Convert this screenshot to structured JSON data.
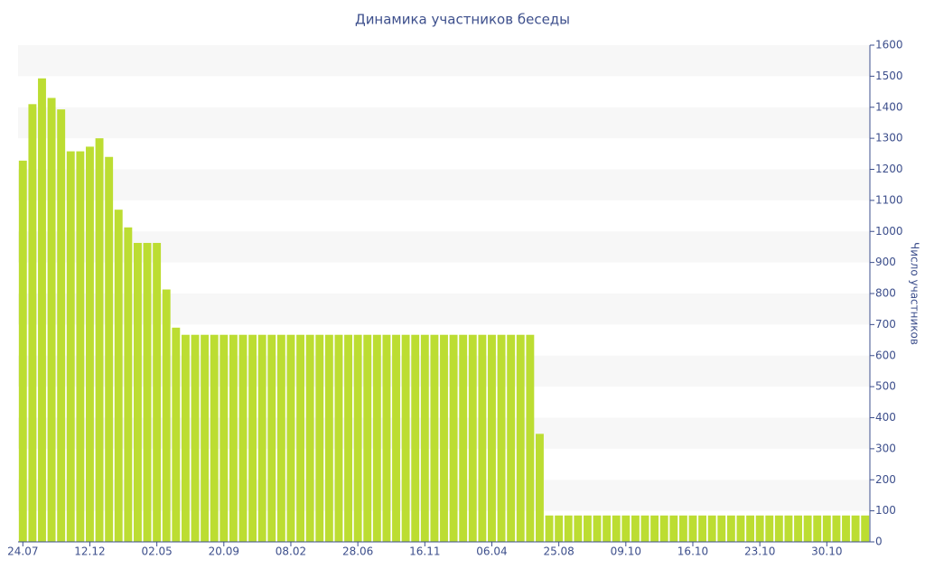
{
  "chart_data": {
    "type": "bar",
    "title": "Динамика участников беседы",
    "y_label": "Число участников",
    "categories": [
      "24.07",
      null,
      null,
      null,
      null,
      null,
      null,
      "12.12",
      null,
      null,
      null,
      null,
      null,
      null,
      "02.05",
      null,
      null,
      null,
      null,
      null,
      null,
      "20.09",
      null,
      null,
      null,
      null,
      null,
      null,
      "08.02",
      null,
      null,
      null,
      null,
      null,
      null,
      "28.06",
      null,
      null,
      null,
      null,
      null,
      null,
      "16.11",
      null,
      null,
      null,
      null,
      null,
      null,
      "06.04",
      null,
      null,
      null,
      null,
      null,
      null,
      "25.08",
      null,
      null,
      null,
      null,
      null,
      null,
      "09.10",
      null,
      null,
      null,
      null,
      null,
      null,
      "16.10",
      null,
      null,
      null,
      null,
      null,
      null,
      "23.10",
      null,
      null,
      null,
      null,
      null,
      null,
      "30.10",
      null,
      null,
      null,
      null
    ],
    "values": [
      1228,
      1410,
      1493,
      1430,
      1393,
      1258,
      1258,
      1273,
      1300,
      1240,
      1070,
      1013,
      963,
      963,
      963,
      813,
      690,
      667,
      667,
      667,
      667,
      667,
      667,
      667,
      667,
      667,
      667,
      667,
      667,
      667,
      667,
      667,
      667,
      667,
      667,
      667,
      667,
      667,
      667,
      667,
      667,
      667,
      667,
      667,
      667,
      667,
      667,
      667,
      667,
      667,
      667,
      667,
      667,
      667,
      348,
      85,
      85,
      85,
      85,
      85,
      85,
      85,
      85,
      85,
      85,
      85,
      85,
      85,
      85,
      85,
      85,
      85,
      85,
      85,
      85,
      85,
      85,
      85,
      85,
      85,
      85,
      85,
      85,
      85,
      85,
      85,
      85,
      85,
      85
    ],
    "color": "#bcdd32",
    "ylim": [
      0,
      1600
    ],
    "yticks": [
      0,
      100,
      200,
      300,
      400,
      500,
      600,
      700,
      800,
      900,
      1000,
      1100,
      1200,
      1300,
      1400,
      1500,
      1600
    ],
    "grid": true,
    "y_axis_side": "right"
  }
}
